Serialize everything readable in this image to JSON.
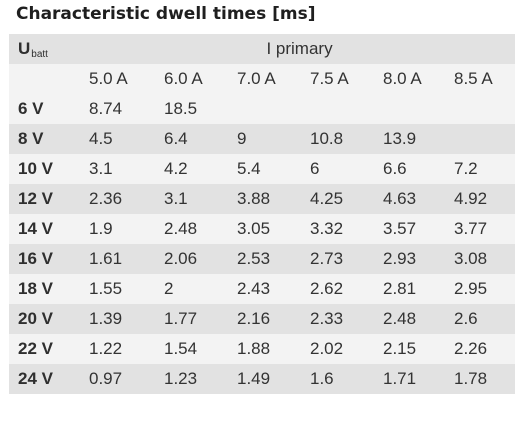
{
  "title": "Characteristic dwell times [ms]",
  "table": {
    "row_header_main": "U",
    "row_header_sub": "batt",
    "group_header": "I primary",
    "columns": [
      "5.0 A",
      "6.0 A",
      "7.0 A",
      "7.5 A",
      "8.0 A",
      "8.5 A"
    ],
    "rows": [
      {
        "label": "6 V",
        "values": [
          "8.74",
          "18.5",
          "",
          "",
          "",
          ""
        ]
      },
      {
        "label": "8 V",
        "values": [
          "4.5",
          "6.4",
          "9",
          "10.8",
          "13.9",
          ""
        ]
      },
      {
        "label": "10 V",
        "values": [
          "3.1",
          "4.2",
          "5.4",
          "6",
          "6.6",
          "7.2"
        ]
      },
      {
        "label": "12 V",
        "values": [
          "2.36",
          "3.1",
          "3.88",
          "4.25",
          "4.63",
          "4.92"
        ]
      },
      {
        "label": "14 V",
        "values": [
          "1.9",
          "2.48",
          "3.05",
          "3.32",
          "3.57",
          "3.77"
        ]
      },
      {
        "label": "16 V",
        "values": [
          "1.61",
          "2.06",
          "2.53",
          "2.73",
          "2.93",
          "3.08"
        ]
      },
      {
        "label": "18 V",
        "values": [
          "1.55",
          "2",
          "2.43",
          "2.62",
          "2.81",
          "2.95"
        ]
      },
      {
        "label": "20 V",
        "values": [
          "1.39",
          "1.77",
          "2.16",
          "2.33",
          "2.48",
          "2.6"
        ]
      },
      {
        "label": "22 V",
        "values": [
          "1.22",
          "1.54",
          "1.88",
          "2.02",
          "2.15",
          "2.26"
        ]
      },
      {
        "label": "24 V",
        "values": [
          "0.97",
          "1.23",
          "1.49",
          "1.6",
          "1.71",
          "1.78"
        ]
      }
    ]
  }
}
